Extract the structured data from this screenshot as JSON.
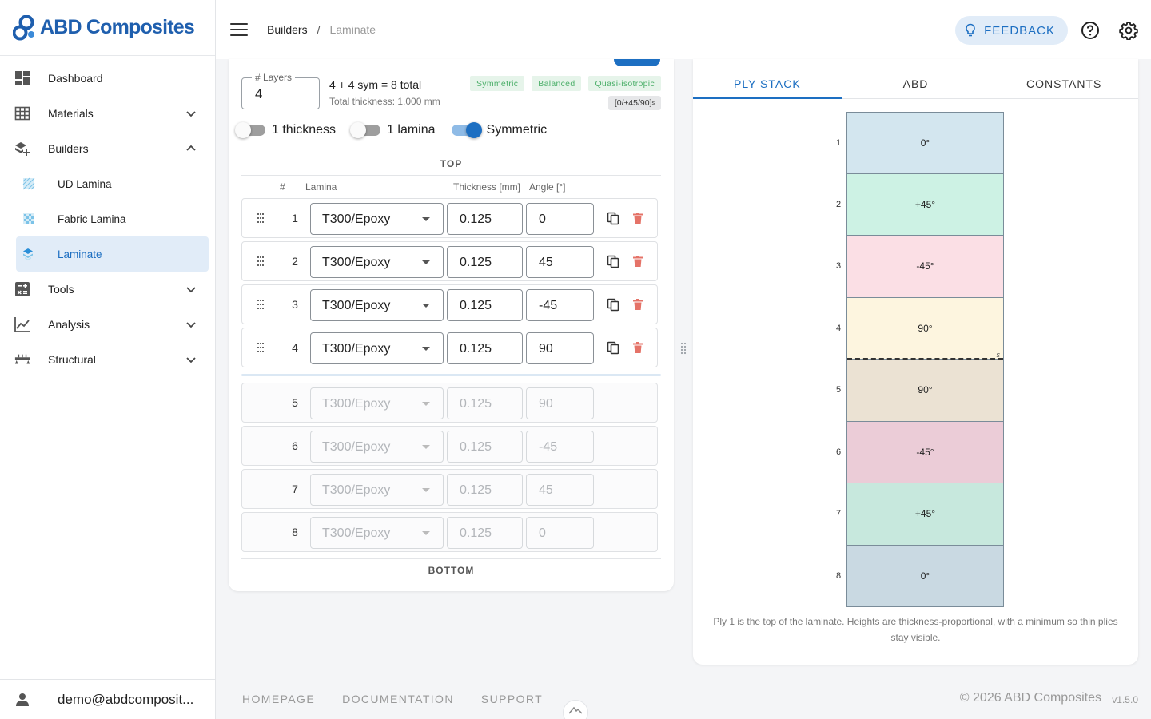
{
  "brand": {
    "name": "ABD Composites"
  },
  "sidebar": {
    "items": [
      {
        "label": "Dashboard"
      },
      {
        "label": "Materials"
      },
      {
        "label": "Builders"
      },
      {
        "label": "Tools"
      },
      {
        "label": "Analysis"
      },
      {
        "label": "Structural"
      }
    ],
    "builders_sub": [
      {
        "label": "UD Lamina"
      },
      {
        "label": "Fabric Lamina"
      },
      {
        "label": "Laminate",
        "active": true
      }
    ],
    "user_email": "demo@abdcomposit..."
  },
  "breadcrumb": {
    "parent": "Builders",
    "separator": "/",
    "current": "Laminate"
  },
  "header": {
    "feedback_label": "FEEDBACK"
  },
  "layup": {
    "layers_label": "# Layers",
    "layers_value": "4",
    "summary": "4 + 4 sym = 8 total",
    "total_thickness": "Total thickness: 1.000 mm",
    "badges": [
      "Symmetric",
      "Balanced",
      "Quasi-isotropic"
    ],
    "code": "[0/±45/90]",
    "code_sub": "s",
    "toggles": [
      {
        "label": "1 thickness",
        "on": false
      },
      {
        "label": "1 lamina",
        "on": false
      },
      {
        "label": "Symmetric",
        "on": true
      }
    ],
    "top_label": "TOP",
    "bottom_label": "BOTTOM",
    "columns": {
      "num": "#",
      "lamina": "Lamina",
      "thickness": "Thickness [mm]",
      "angle": "Angle [°]"
    },
    "plies": [
      {
        "n": "1",
        "lamina": "T300/Epoxy",
        "thickness": "0.125",
        "angle": "0"
      },
      {
        "n": "2",
        "lamina": "T300/Epoxy",
        "thickness": "0.125",
        "angle": "45"
      },
      {
        "n": "3",
        "lamina": "T300/Epoxy",
        "thickness": "0.125",
        "angle": "-45"
      },
      {
        "n": "4",
        "lamina": "T300/Epoxy",
        "thickness": "0.125",
        "angle": "90"
      }
    ],
    "mirror_plies": [
      {
        "n": "5",
        "lamina": "T300/Epoxy",
        "thickness": "0.125",
        "angle": "90"
      },
      {
        "n": "6",
        "lamina": "T300/Epoxy",
        "thickness": "0.125",
        "angle": "-45"
      },
      {
        "n": "7",
        "lamina": "T300/Epoxy",
        "thickness": "0.125",
        "angle": "45"
      },
      {
        "n": "8",
        "lamina": "T300/Epoxy",
        "thickness": "0.125",
        "angle": "0"
      }
    ]
  },
  "viz": {
    "tabs": [
      "PLY STACK",
      "ABD",
      "CONSTANTS"
    ],
    "active_tab": "PLY STACK",
    "stack": [
      {
        "n": "1",
        "label": "0°",
        "color": "#d3e6ef"
      },
      {
        "n": "2",
        "label": "+45°",
        "color": "#cdf2e4"
      },
      {
        "n": "3",
        "label": "-45°",
        "color": "#fbdfe5"
      },
      {
        "n": "4",
        "label": "90°",
        "color": "#fdf5df"
      },
      {
        "n": "5",
        "label": "90°",
        "color": "#ebe2d3"
      },
      {
        "n": "6",
        "label": "-45°",
        "color": "#ebccd7"
      },
      {
        "n": "7",
        "label": "+45°",
        "color": "#c7e8dd"
      },
      {
        "n": "8",
        "label": "0°",
        "color": "#c9d9e2"
      }
    ],
    "midplane_mark": "s",
    "caption": "Ply 1 is the top of the laminate. Heights are thickness-proportional, with a minimum so thin plies stay visible."
  },
  "footer": {
    "links": [
      "HOMEPAGE",
      "DOCUMENTATION",
      "SUPPORT"
    ],
    "copyright": "© 2026 ABD Composites",
    "version": "v1.5.0"
  },
  "colors": {
    "accent": "#1d6fc2",
    "accent_light": "#e1ecf8",
    "badge_green": "#4caf6a",
    "delete_red": "#e57368"
  }
}
